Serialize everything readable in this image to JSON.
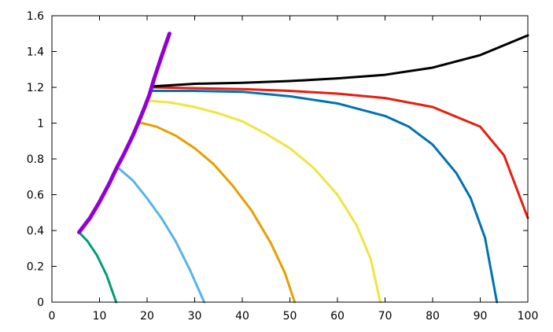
{
  "chart_data": {
    "type": "line",
    "title": "",
    "xlabel": "",
    "ylabel": "",
    "xlim": [
      0,
      100
    ],
    "ylim": [
      0,
      1.6
    ],
    "grid": false,
    "legend": "none",
    "xticks": [
      0,
      10,
      20,
      30,
      40,
      50,
      60,
      70,
      80,
      90,
      100
    ],
    "xtick_labels": [
      "0",
      "10",
      "20",
      "30",
      "40",
      "50",
      "60",
      "70",
      "80",
      "90",
      "100"
    ],
    "yticks": [
      0,
      0.2,
      0.4,
      0.6,
      0.8,
      1.0,
      1.2,
      1.4,
      1.6
    ],
    "ytick_labels": [
      "0",
      "0.2",
      "0.4",
      "0.6",
      "0.8",
      "1",
      "1.2",
      "1.4",
      "1.6"
    ],
    "series": [
      {
        "color": "#009e73",
        "stroke_width": 3,
        "points": [
          [
            5.7,
            0.39
          ],
          [
            7.5,
            0.34
          ],
          [
            9.5,
            0.26
          ],
          [
            11.5,
            0.15
          ],
          [
            13.5,
            0.0
          ]
        ]
      },
      {
        "color": "#56b4e9",
        "stroke_width": 3,
        "points": [
          [
            13.7,
            0.755
          ],
          [
            17,
            0.68
          ],
          [
            20,
            0.58
          ],
          [
            23,
            0.47
          ],
          [
            26,
            0.34
          ],
          [
            29,
            0.18
          ],
          [
            32.0,
            0.0
          ]
        ]
      },
      {
        "color": "#e69f00",
        "stroke_width": 3,
        "points": [
          [
            18.2,
            1.005
          ],
          [
            22,
            0.98
          ],
          [
            26,
            0.93
          ],
          [
            30,
            0.86
          ],
          [
            34,
            0.77
          ],
          [
            38,
            0.65
          ],
          [
            42,
            0.51
          ],
          [
            46,
            0.33
          ],
          [
            49,
            0.16
          ],
          [
            51.0,
            0.0
          ]
        ]
      },
      {
        "color": "#f0e442",
        "stroke_width": 3,
        "points": [
          [
            20.2,
            1.125
          ],
          [
            25,
            1.115
          ],
          [
            30,
            1.09
          ],
          [
            35,
            1.055
          ],
          [
            40,
            1.01
          ],
          [
            45,
            0.94
          ],
          [
            50,
            0.86
          ],
          [
            55,
            0.75
          ],
          [
            60,
            0.6
          ],
          [
            64,
            0.43
          ],
          [
            67,
            0.24
          ],
          [
            69.0,
            0.0
          ]
        ]
      },
      {
        "color": "#0072b2",
        "stroke_width": 3,
        "points": [
          [
            21.0,
            1.18
          ],
          [
            30,
            1.18
          ],
          [
            40,
            1.175
          ],
          [
            50,
            1.15
          ],
          [
            60,
            1.11
          ],
          [
            70,
            1.04
          ],
          [
            75,
            0.98
          ],
          [
            80,
            0.88
          ],
          [
            85,
            0.72
          ],
          [
            88,
            0.58
          ],
          [
            91,
            0.36
          ],
          [
            93.5,
            0.0
          ]
        ]
      },
      {
        "color": "#e51e10",
        "stroke_width": 3,
        "points": [
          [
            21.0,
            1.2
          ],
          [
            30,
            1.195
          ],
          [
            40,
            1.19
          ],
          [
            50,
            1.18
          ],
          [
            60,
            1.165
          ],
          [
            70,
            1.14
          ],
          [
            80,
            1.09
          ],
          [
            90,
            0.98
          ],
          [
            95,
            0.82
          ],
          [
            100,
            0.47
          ]
        ]
      },
      {
        "color": "#000000",
        "stroke_width": 3,
        "points": [
          [
            21.0,
            1.205
          ],
          [
            30,
            1.22
          ],
          [
            40,
            1.225
          ],
          [
            50,
            1.235
          ],
          [
            60,
            1.25
          ],
          [
            70,
            1.27
          ],
          [
            80,
            1.31
          ],
          [
            90,
            1.38
          ],
          [
            100,
            1.49
          ]
        ]
      },
      {
        "color": "#9400d3",
        "stroke_width": 5,
        "points": [
          [
            5.7,
            0.39
          ],
          [
            8,
            0.47
          ],
          [
            10,
            0.56
          ],
          [
            12,
            0.66
          ],
          [
            13.7,
            0.755
          ],
          [
            15,
            0.82
          ],
          [
            17,
            0.93
          ],
          [
            18.2,
            1.005
          ],
          [
            19.5,
            1.09
          ],
          [
            20.5,
            1.16
          ],
          [
            21.5,
            1.25
          ],
          [
            23,
            1.37
          ],
          [
            24.7,
            1.5
          ]
        ]
      }
    ]
  }
}
